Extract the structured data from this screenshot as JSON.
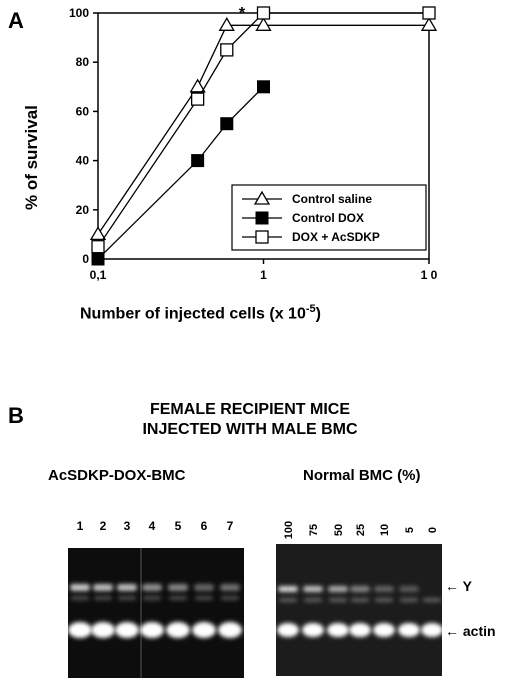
{
  "panel_a_label": "A",
  "panel_b_label": "B",
  "chart_data": {
    "type": "line",
    "title": "",
    "xlabel": "Number of injected cells (x 10",
    "xlabel_exponent": "-5",
    "xlabel_suffix": ")",
    "ylabel": "% of survival",
    "x_scale": "log",
    "xlim": [
      0.1,
      10
    ],
    "ylim": [
      0,
      100
    ],
    "x_ticks": [
      0.1,
      1,
      10
    ],
    "x_tick_labels": [
      "0,1",
      "1",
      "1 0"
    ],
    "y_ticks": [
      0,
      20,
      40,
      60,
      80,
      100
    ],
    "y_tick_labels": [
      "0",
      "20",
      "40",
      "60",
      "80",
      "100"
    ],
    "grid": false,
    "legend_position": "bottom-right",
    "annotation": "*",
    "series": [
      {
        "name": "Control saline",
        "marker": "triangle-open",
        "x": [
          0.1,
          0.4,
          0.6,
          1,
          10
        ],
        "y": [
          10,
          70,
          95,
          95,
          95
        ]
      },
      {
        "name": "Control DOX",
        "marker": "square-filled",
        "x": [
          0.1,
          0.4,
          0.6,
          1
        ],
        "y": [
          0,
          40,
          55,
          70
        ]
      },
      {
        "name": "DOX + AcSDKP",
        "marker": "square-open",
        "x": [
          0.1,
          0.4,
          0.6,
          1,
          10
        ],
        "y": [
          5,
          65,
          85,
          100,
          100
        ]
      }
    ]
  },
  "gel": {
    "heading_line1": "FEMALE RECIPIENT MICE",
    "heading_line2": "INJECTED WITH MALE BMC",
    "left_title": "AcSDKP-DOX-BMC",
    "right_title": "Normal BMC (%)",
    "left_lanes": [
      "1",
      "2",
      "3",
      "4",
      "5",
      "6",
      "7"
    ],
    "right_lanes": [
      "100",
      "75",
      "50",
      "25",
      "10",
      "5",
      "0"
    ],
    "band_y_label": "Y",
    "band_actin_label": "actin"
  }
}
